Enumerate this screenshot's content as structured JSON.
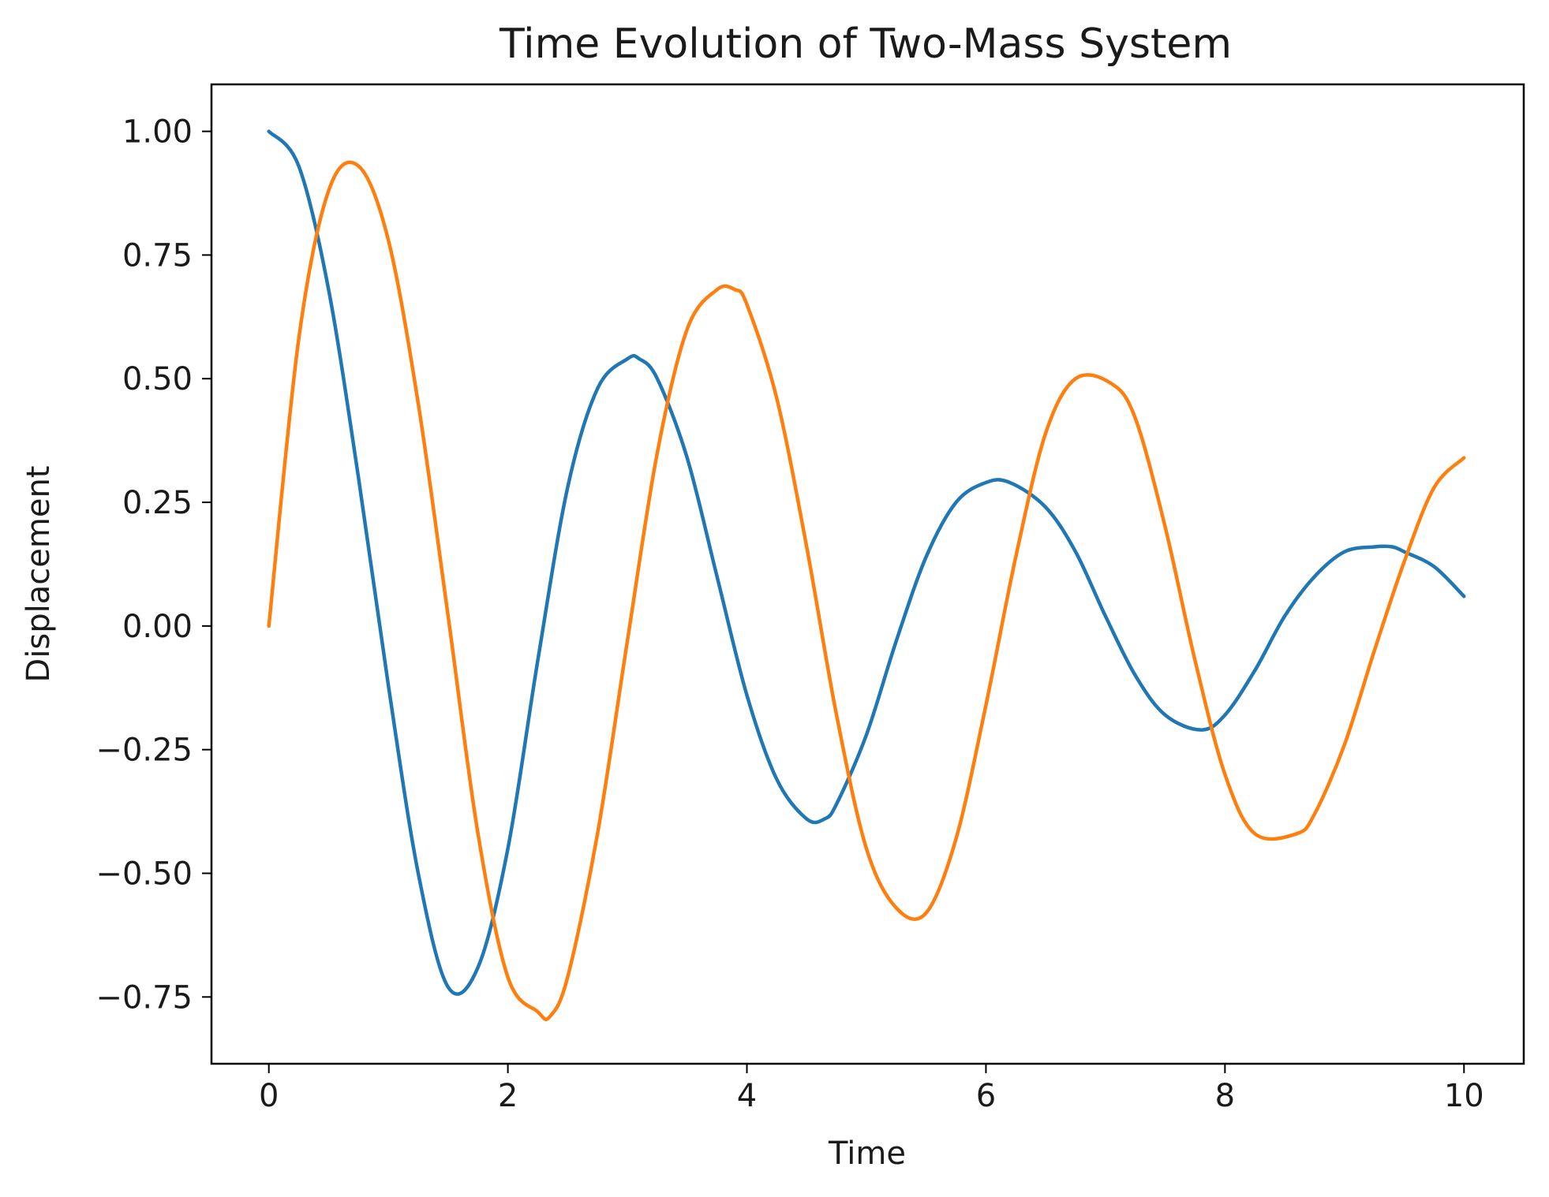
{
  "chart_data": {
    "type": "line",
    "title": "Time Evolution of Two-Mass System",
    "xlabel": "Time",
    "ylabel": "Displacement",
    "xlim": [
      -0.48,
      10.5
    ],
    "ylim": [
      -0.885,
      1.095
    ],
    "x_ticks": [
      0,
      2,
      4,
      6,
      8,
      10
    ],
    "x_tick_labels": [
      "0",
      "2",
      "4",
      "6",
      "8",
      "10"
    ],
    "y_ticks": [
      1.0,
      0.75,
      0.5,
      0.25,
      0.0,
      -0.25,
      -0.5,
      -0.75
    ],
    "y_tick_labels": [
      "1.00",
      "0.75",
      "0.50",
      "0.25",
      "0.00",
      "−0.25",
      "−0.50",
      "−0.75"
    ],
    "grid": false,
    "legend": "none",
    "series": [
      {
        "color": "#1f77b4",
        "x": [
          0,
          0.25,
          0.5,
          0.75,
          1.0,
          1.25,
          1.5,
          1.75,
          2.0,
          2.25,
          2.5,
          2.75,
          3.0,
          3.1,
          3.25,
          3.5,
          3.75,
          4.0,
          4.25,
          4.5,
          4.65,
          4.75,
          5.0,
          5.25,
          5.5,
          5.75,
          6.0,
          6.2,
          6.5,
          6.75,
          7.0,
          7.25,
          7.5,
          7.8,
          8.0,
          8.25,
          8.5,
          8.75,
          9.0,
          9.25,
          9.4,
          9.5,
          9.75,
          10.0
        ],
        "y": [
          1.0,
          0.93,
          0.68,
          0.3,
          -0.12,
          -0.5,
          -0.73,
          -0.69,
          -0.45,
          -0.07,
          0.28,
          0.48,
          0.54,
          0.54,
          0.5,
          0.34,
          0.1,
          -0.14,
          -0.31,
          -0.39,
          -0.39,
          -0.36,
          -0.22,
          -0.03,
          0.14,
          0.25,
          0.29,
          0.29,
          0.24,
          0.15,
          0.02,
          -0.1,
          -0.18,
          -0.21,
          -0.18,
          -0.09,
          0.02,
          0.1,
          0.15,
          0.16,
          0.16,
          0.15,
          0.12,
          0.06
        ]
      },
      {
        "color": "#ff7f0e",
        "x": [
          0,
          0.25,
          0.5,
          0.75,
          1.0,
          1.25,
          1.5,
          1.75,
          2.0,
          2.25,
          2.35,
          2.5,
          2.75,
          3.0,
          3.25,
          3.5,
          3.75,
          3.9,
          4.0,
          4.25,
          4.5,
          4.75,
          5.0,
          5.25,
          5.5,
          5.75,
          6.0,
          6.25,
          6.5,
          6.75,
          7.05,
          7.25,
          7.5,
          7.75,
          8.0,
          8.25,
          8.6,
          8.75,
          9.0,
          9.25,
          9.5,
          9.75,
          10.0
        ],
        "y": [
          0.0,
          0.58,
          0.88,
          0.93,
          0.78,
          0.45,
          0.02,
          -0.42,
          -0.71,
          -0.78,
          -0.79,
          -0.71,
          -0.42,
          -0.03,
          0.35,
          0.6,
          0.68,
          0.68,
          0.65,
          0.46,
          0.16,
          -0.18,
          -0.45,
          -0.57,
          -0.58,
          -0.43,
          -0.16,
          0.14,
          0.39,
          0.5,
          0.49,
          0.42,
          0.2,
          -0.07,
          -0.3,
          -0.42,
          -0.42,
          -0.38,
          -0.24,
          -0.05,
          0.13,
          0.28,
          0.34
        ]
      }
    ]
  }
}
